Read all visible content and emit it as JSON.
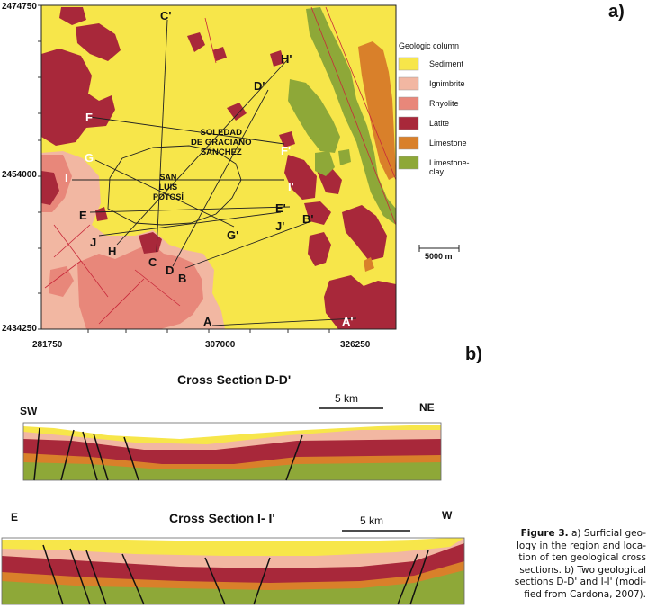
{
  "panel_a": {
    "letter": "a)",
    "y_ticks": [
      "2474750",
      "2454000",
      "2434250"
    ],
    "x_ticks": [
      "281750",
      "307000",
      "326250"
    ],
    "legend": {
      "title": "Geologic column",
      "items": [
        {
          "label": "Sediment",
          "color": "#f7e64a"
        },
        {
          "label": "Ignimbrite",
          "color": "#f2b7a2"
        },
        {
          "label": "Rhyolite",
          "color": "#e8877a"
        },
        {
          "label": "Latite",
          "color": "#a8283a"
        },
        {
          "label": "Limestone",
          "color": "#d9802a"
        },
        {
          "label": "Limestone-clay",
          "color": "#8ea838"
        }
      ]
    },
    "scale": "5000 m",
    "towns": {
      "soledad": [
        "SOLEDAD",
        "DE GRACIANO",
        "SÁNCHEZ"
      ],
      "sanluis": [
        "SAN",
        "LUIS",
        "POTOSÍ"
      ]
    },
    "section_points": [
      "A",
      "A'",
      "B",
      "B'",
      "C",
      "C'",
      "D",
      "D'",
      "E",
      "E'",
      "F",
      "F'",
      "G",
      "G'",
      "H",
      "H'",
      "I",
      "I'",
      "J",
      "J'"
    ]
  },
  "panel_b": {
    "letter": "b)",
    "section1": {
      "title": "Cross Section D-D'",
      "left": "SW",
      "right": "NE",
      "scale": "5 km"
    },
    "section2": {
      "title": "Cross Section I- I'",
      "left": "E",
      "right": "W",
      "scale": "5 km"
    }
  },
  "caption": {
    "label": "Figure 3.",
    "text_lines": [
      " a) Surficial geo-",
      "logy in the region and loca-",
      "tion of ten geological cross",
      "sections. b) Two geological",
      "sections D-D' and I-I' (modi-",
      "fied from Cardona, 2007)."
    ]
  }
}
